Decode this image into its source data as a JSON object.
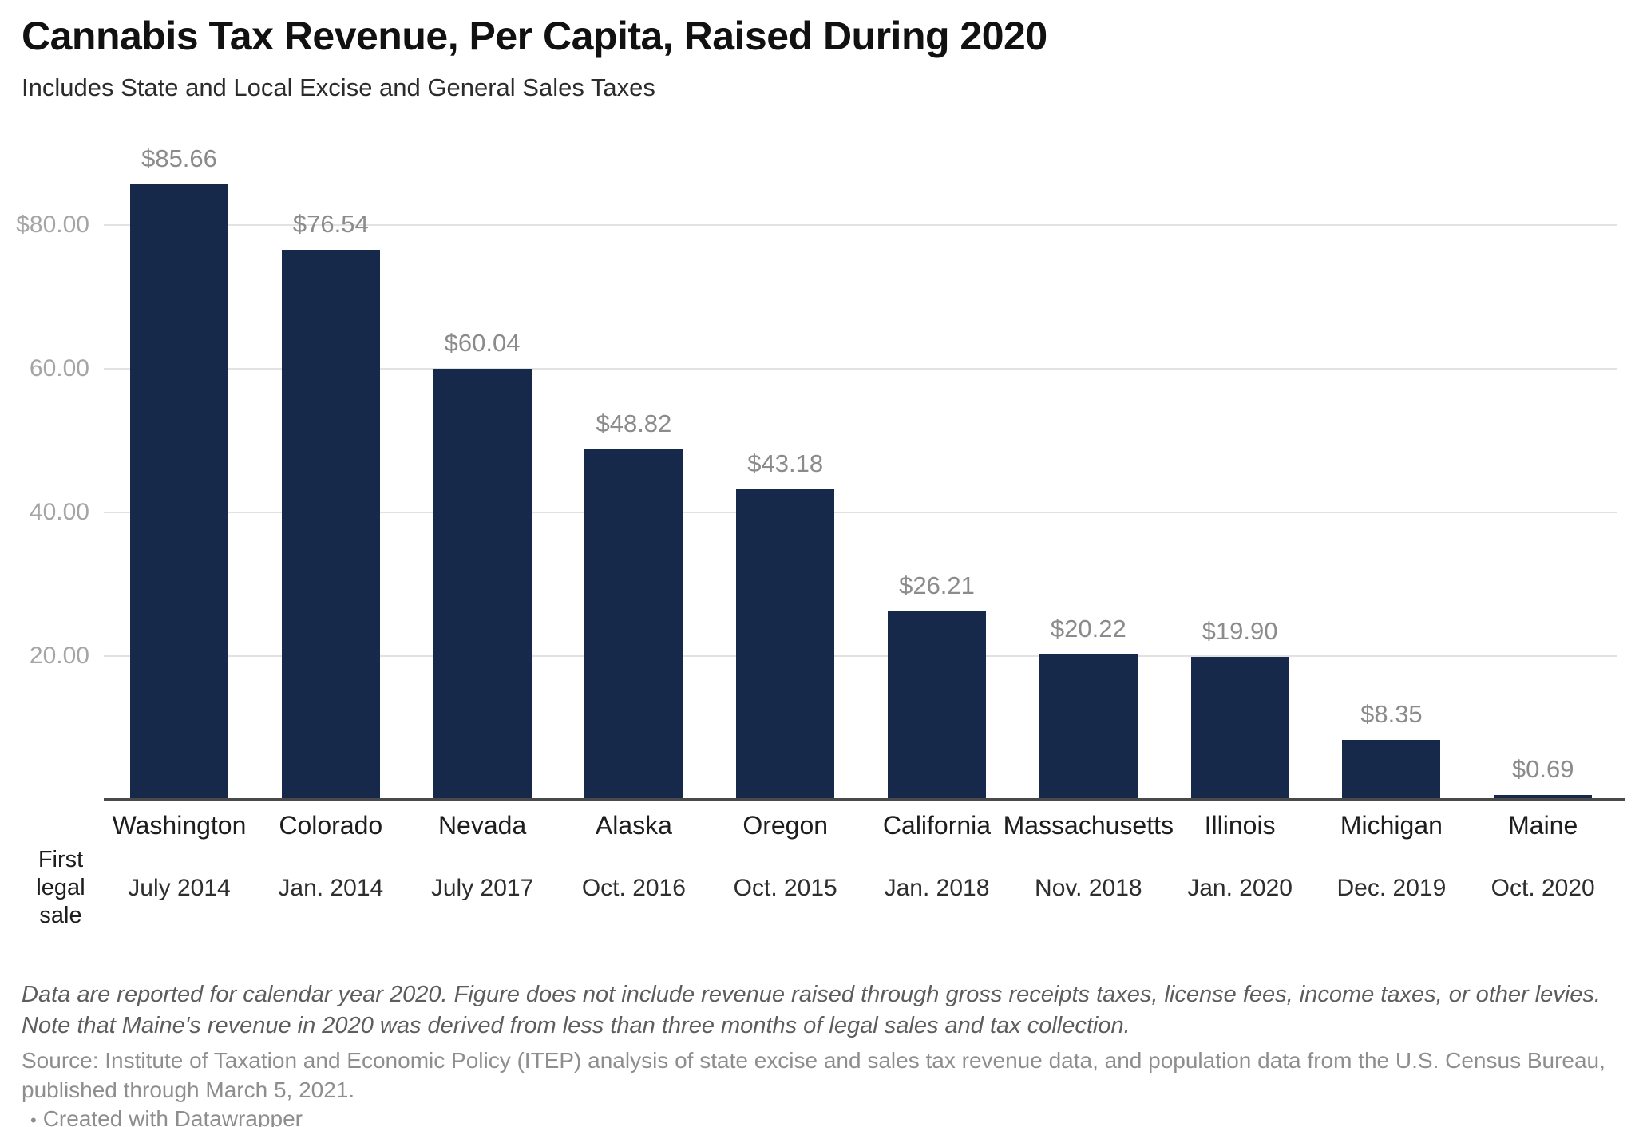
{
  "header": {
    "title": "Cannabis Tax Revenue, Per Capita, Raised During 2020",
    "subtitle": "Includes State and Local Excise and General Sales Taxes"
  },
  "chart_data": {
    "type": "bar",
    "title": "Cannabis Tax Revenue, Per Capita, Raised During 2020",
    "subtitle": "Includes State and Local Excise and General Sales Taxes",
    "categories": [
      "Washington",
      "Colorado",
      "Nevada",
      "Alaska",
      "Oregon",
      "California",
      "Massachusetts",
      "Illinois",
      "Michigan",
      "Maine"
    ],
    "values": [
      85.66,
      76.54,
      60.04,
      48.82,
      43.18,
      26.21,
      20.22,
      19.9,
      8.35,
      0.69
    ],
    "value_labels": [
      "$85.66",
      "$76.54",
      "$60.04",
      "$48.82",
      "$43.18",
      "$26.21",
      "$20.22",
      "$19.90",
      "$8.35",
      "$0.69"
    ],
    "first_legal_sale_dates": [
      "July 2014",
      "Jan. 2014",
      "July 2017",
      "Oct. 2016",
      "Oct. 2015",
      "Jan. 2018",
      "Nov. 2018",
      "Jan. 2020",
      "Dec. 2019",
      "Oct. 2020"
    ],
    "row_label_lines": [
      "First",
      "legal",
      "sale"
    ],
    "yticks": [
      {
        "value": 80,
        "label": "$80.00"
      },
      {
        "value": 60,
        "label": "60.00"
      },
      {
        "value": 40,
        "label": "40.00"
      },
      {
        "value": 20,
        "label": "20.00"
      }
    ],
    "ylim": [
      0,
      90
    ],
    "xlabel": "",
    "ylabel": "",
    "grid": "horizontal",
    "legend": "none",
    "bar_color": "#16294b"
  },
  "footer": {
    "note": "Data are reported for calendar year 2020. Figure does not include revenue raised through gross receipts taxes, license fees, income taxes, or other levies. Note that Maine's revenue in 2020 was derived from less than three months of legal sales and tax collection.",
    "source": "Source: Institute of Taxation and Economic Policy (ITEP) analysis of state excise and sales tax revenue data, and population data from the U.S. Census Bureau, published through March 5, 2021.",
    "bullet": "•",
    "attribution": "Created with Datawrapper"
  }
}
